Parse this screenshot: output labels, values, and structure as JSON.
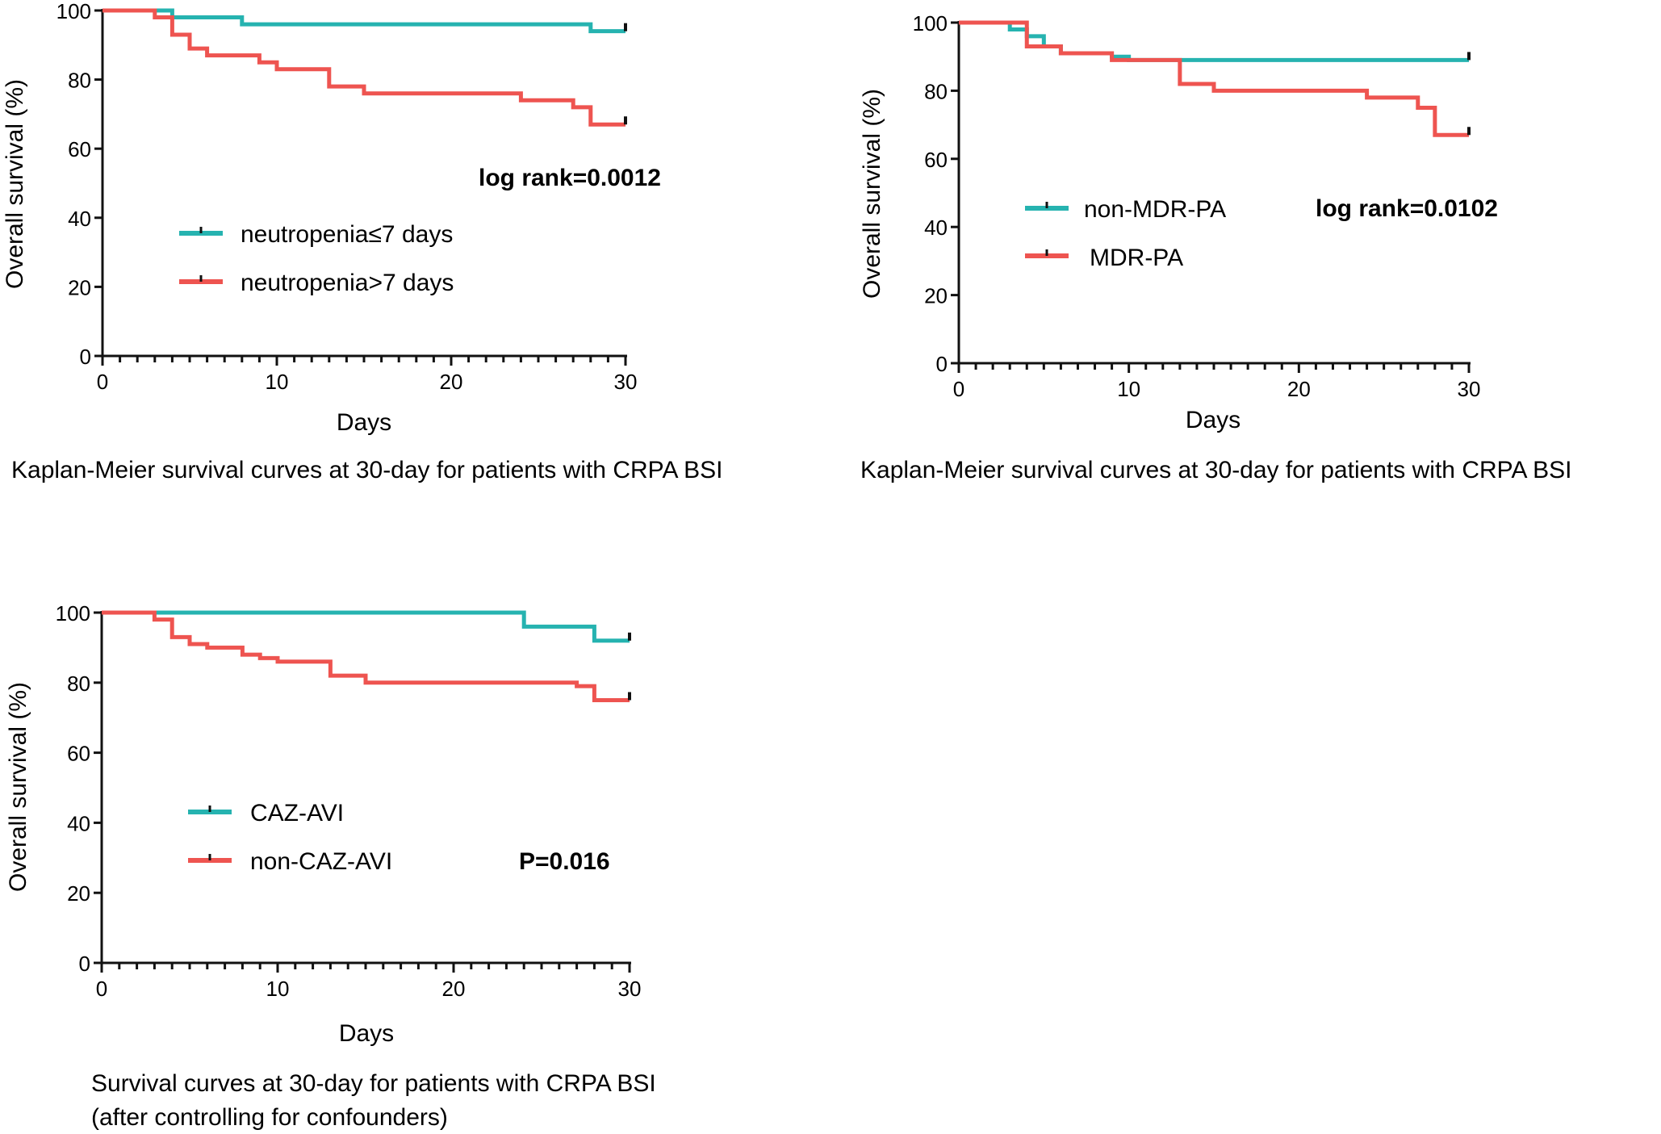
{
  "colors": {
    "teal": "#26b3b0",
    "red": "#ee5450",
    "axis": "#111111"
  },
  "chart_data": [
    {
      "type": "line",
      "chart_id": "neutropenia",
      "xlabel": "Days",
      "ylabel": "Overall survival (%)",
      "xlim": [
        0,
        30
      ],
      "ylim": [
        0,
        100
      ],
      "xticks": [
        "0",
        "10",
        "20",
        "30"
      ],
      "yticks": [
        "0",
        "20",
        "40",
        "60",
        "80",
        "100"
      ],
      "annotation": "log rank=0.0012",
      "caption": [
        "Kaplan-Meier survival curves at 30-day for patients with CRPA BSI"
      ],
      "series": [
        {
          "name": "neutropenia≤7 days",
          "color": "teal",
          "steps": [
            [
              0,
              100
            ],
            [
              4,
              98
            ],
            [
              8,
              96
            ],
            [
              28,
              94
            ],
            [
              30,
              94
            ]
          ]
        },
        {
          "name": "neutropenia>7 days",
          "color": "red",
          "steps": [
            [
              0,
              100
            ],
            [
              3,
              98
            ],
            [
              4,
              93
            ],
            [
              5,
              89
            ],
            [
              6,
              87
            ],
            [
              9,
              85
            ],
            [
              10,
              83
            ],
            [
              13,
              78
            ],
            [
              15,
              76
            ],
            [
              24,
              74
            ],
            [
              27,
              72
            ],
            [
              28,
              67
            ],
            [
              30,
              67
            ]
          ]
        }
      ]
    },
    {
      "type": "line",
      "chart_id": "mdr",
      "xlabel": "Days",
      "ylabel": "Overall survival (%)",
      "xlim": [
        0,
        30
      ],
      "ylim": [
        0,
        100
      ],
      "xticks": [
        "0",
        "10",
        "20",
        "30"
      ],
      "yticks": [
        "0",
        "20",
        "40",
        "60",
        "80",
        "100"
      ],
      "annotation": "log rank=0.0102",
      "caption": [
        "Kaplan-Meier survival curves at 30-day for patients with CRPA BSI"
      ],
      "series": [
        {
          "name": "non-MDR-PA",
          "color": "teal",
          "steps": [
            [
              0,
              100
            ],
            [
              3,
              98
            ],
            [
              4,
              96
            ],
            [
              5,
              93
            ],
            [
              6,
              91
            ],
            [
              9,
              90
            ],
            [
              10,
              89
            ],
            [
              30,
              89
            ]
          ]
        },
        {
          "name": "MDR-PA",
          "color": "red",
          "steps": [
            [
              0,
              100
            ],
            [
              4,
              93
            ],
            [
              6,
              91
            ],
            [
              9,
              89
            ],
            [
              13,
              82
            ],
            [
              15,
              80
            ],
            [
              24,
              78
            ],
            [
              27,
              75
            ],
            [
              28,
              67
            ],
            [
              30,
              67
            ]
          ]
        }
      ]
    },
    {
      "type": "line",
      "chart_id": "cazavi",
      "xlabel": "Days",
      "ylabel": "Overall survival (%)",
      "xlim": [
        0,
        30
      ],
      "ylim": [
        0,
        100
      ],
      "xticks": [
        "0",
        "10",
        "20",
        "30"
      ],
      "yticks": [
        "0",
        "20",
        "40",
        "60",
        "80",
        "100"
      ],
      "annotation": "P=0.016",
      "caption": [
        "Survival curves at 30-day for patients with CRPA BSI",
        "(after controlling for confounders)"
      ],
      "series": [
        {
          "name": "CAZ-AVI",
          "color": "teal",
          "steps": [
            [
              0,
              100
            ],
            [
              24,
              96
            ],
            [
              28,
              92
            ],
            [
              30,
              92
            ]
          ]
        },
        {
          "name": "non-CAZ-AVI",
          "color": "red",
          "steps": [
            [
              0,
              100
            ],
            [
              3,
              98
            ],
            [
              4,
              93
            ],
            [
              5,
              91
            ],
            [
              6,
              90
            ],
            [
              8,
              88
            ],
            [
              9,
              87
            ],
            [
              10,
              86
            ],
            [
              13,
              82
            ],
            [
              15,
              80
            ],
            [
              27,
              79
            ],
            [
              28,
              75
            ],
            [
              30,
              75
            ]
          ]
        }
      ]
    }
  ]
}
